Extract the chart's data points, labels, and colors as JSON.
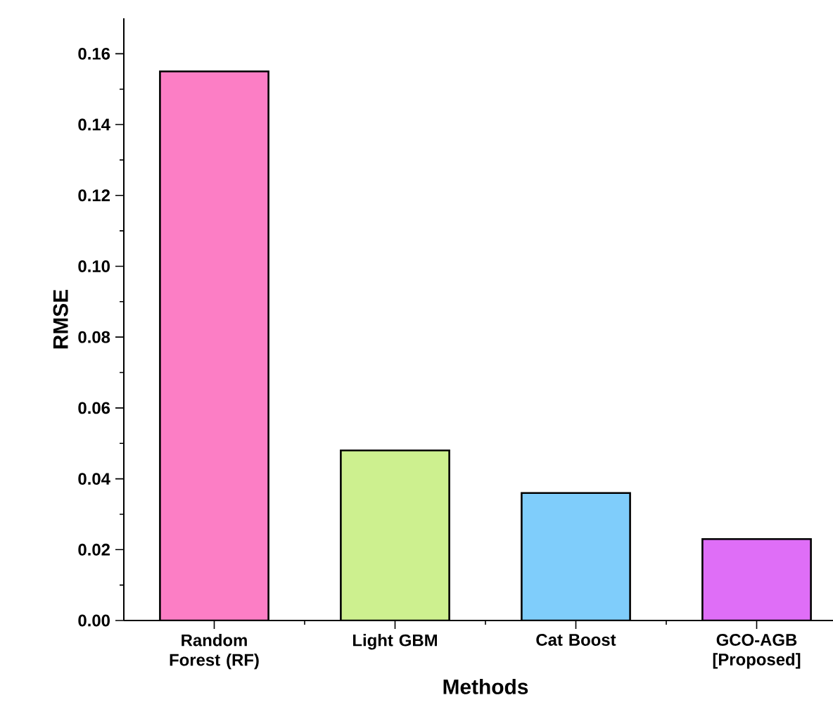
{
  "chart_data": {
    "type": "bar",
    "xlabel": "Methods",
    "ylabel": "RMSE",
    "categories": [
      "Random Forest (RF)",
      "Light GBM",
      "Cat Boost",
      "GCO-AGB [Proposed]"
    ],
    "values": [
      0.155,
      0.048,
      0.036,
      0.023
    ],
    "colors": [
      "#fc7ec5",
      "#cdf08f",
      "#7fcdfb",
      "#df6ef7"
    ],
    "ylim": [
      0,
      0.17
    ],
    "yticks": [
      {
        "value": 0,
        "label": "0.00"
      },
      {
        "value": 0.02,
        "label": "0.02"
      },
      {
        "value": 0.04,
        "label": "0.04"
      },
      {
        "value": 0.06,
        "label": "0.06"
      },
      {
        "value": 0.08,
        "label": "0.08"
      },
      {
        "value": 0.1,
        "label": "0.10"
      },
      {
        "value": 0.12,
        "label": "0.12"
      },
      {
        "value": 0.14,
        "label": "0.14"
      },
      {
        "value": 0.16,
        "label": "0.16"
      }
    ]
  }
}
